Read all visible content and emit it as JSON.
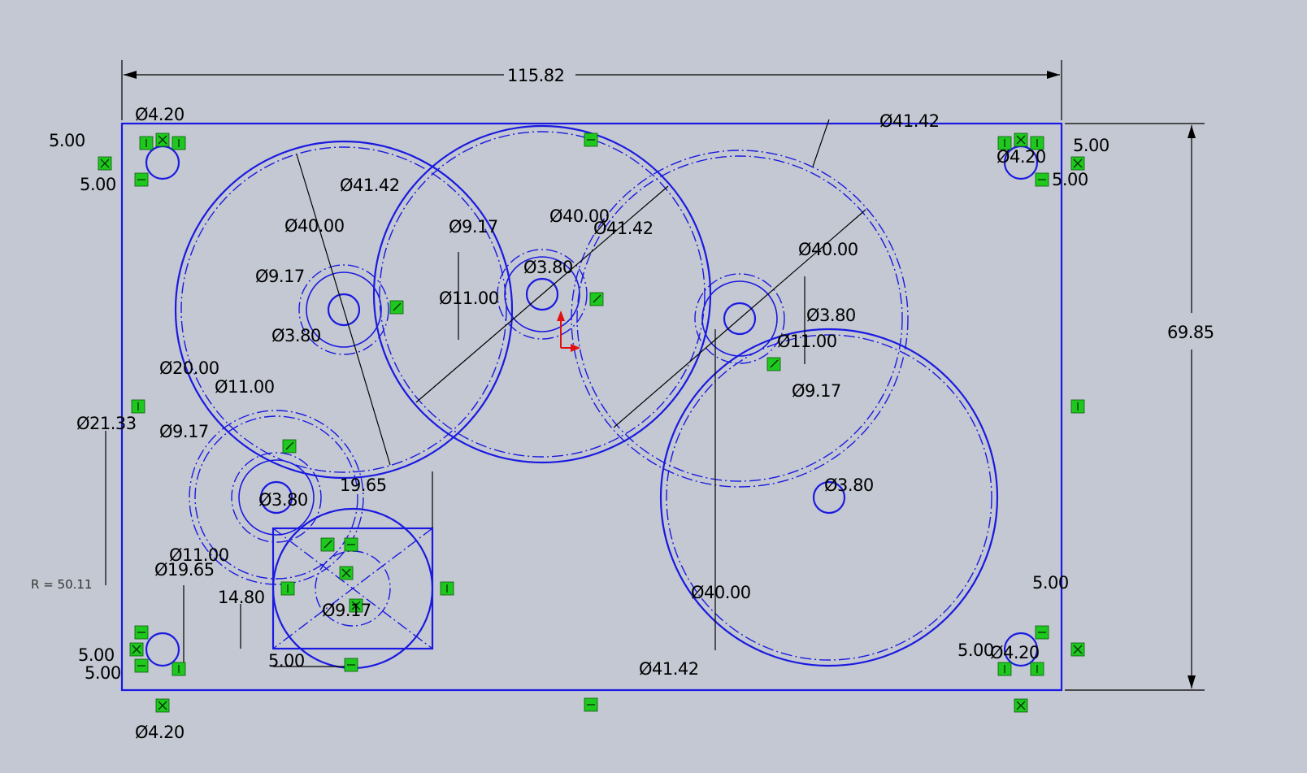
{
  "colors": {
    "background": "#c4c8d2",
    "geometry": "#1a1ae0",
    "dimension": "#000000",
    "relation": "#1ec81e",
    "origin": "#e01010"
  },
  "overall": {
    "width_dim": "115.82",
    "height_dim": "69.85"
  },
  "corner_holes": {
    "tl_dia": "Ø4.20",
    "tl_x": "5.00",
    "tl_y": "5.00",
    "tr_dia": "Ø4.20",
    "tr_x": "5.00",
    "tr_y": "5.00",
    "bl_dia": "Ø4.20",
    "bl_x": "5.00",
    "bl_y": "5.00",
    "br_dia": "Ø4.20",
    "br_x": "5.00",
    "br_y": "5.00"
  },
  "gear_left": {
    "pitch": "Ø40.00",
    "outer": "Ø41.42",
    "hub": "Ø9.17",
    "bore": "Ø3.80",
    "boss": "Ø11.00"
  },
  "gear_center": {
    "pitch": "Ø40.00",
    "outer": "Ø41.42",
    "hub": "Ø9.17",
    "bore": "Ø3.80",
    "boss": "Ø11.00"
  },
  "gear_right": {
    "pitch": "Ø40.00",
    "outer": "Ø41.42",
    "hub": "Ø9.17",
    "bore": "Ø3.80",
    "boss": "Ø11.00"
  },
  "gear_lower_right": {
    "pitch": "Ø40.00",
    "outer": "Ø41.42",
    "bore": "Ø3.80"
  },
  "gear_small": {
    "pitch": "Ø20.00",
    "outer": "Ø21.33",
    "hub": "Ø9.17",
    "bore": "Ø3.80",
    "boss": "Ø11.00",
    "radius": "R = 50.11"
  },
  "motor": {
    "dia": "Ø19.65",
    "width": "19.65",
    "height": "14.80",
    "inner": "Ø9.17",
    "offset": "5.00"
  }
}
